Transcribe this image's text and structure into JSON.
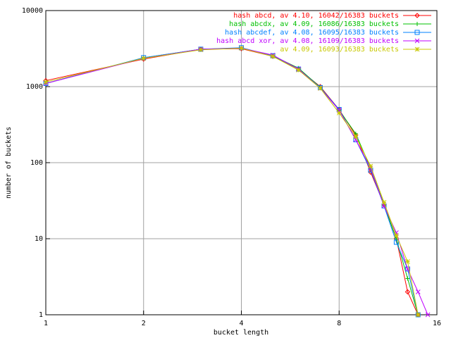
{
  "chart_data": {
    "type": "line",
    "xlabel": "bucket length",
    "ylabel": "number of buckets",
    "x": [
      1,
      2,
      3,
      4,
      5,
      6,
      7,
      8,
      9,
      10,
      11,
      12,
      13,
      14,
      15
    ],
    "xlim": [
      1,
      16
    ],
    "xticks": [
      1,
      2,
      4,
      8,
      16
    ],
    "xlog": true,
    "ylim": [
      1,
      10000
    ],
    "yticks": [
      1,
      10,
      100,
      1000,
      10000
    ],
    "ylog": true,
    "grid": true,
    "legend": "top-right",
    "series": [
      {
        "name": "hash abcd, av 4.10, 16042/16383 buckets",
        "color": "#ff0000",
        "marker": "diamond",
        "values": [
          1200,
          2300,
          3100,
          3150,
          2500,
          1700,
          1000,
          500,
          230,
          75,
          28,
          10,
          2,
          1,
          null
        ]
      },
      {
        "name": "hash abcdx, av 4.09, 16086/16383 buckets",
        "color": "#00c000",
        "marker": "plus",
        "values": [
          1100,
          2400,
          3100,
          3200,
          2550,
          1750,
          980,
          490,
          240,
          85,
          28,
          10,
          3,
          1,
          null
        ]
      },
      {
        "name": "hash abcdef, av 4.08, 16095/16383 buckets",
        "color": "#0080ff",
        "marker": "square",
        "values": [
          1100,
          2400,
          3100,
          3250,
          2550,
          1700,
          970,
          500,
          200,
          80,
          27,
          9,
          4,
          1,
          null
        ]
      },
      {
        "name": "hash abcd xor, av 4.08, 16109/16383 buckets",
        "color": "#c000ff",
        "marker": "cross",
        "values": [
          1100,
          2350,
          3100,
          3200,
          2600,
          1700,
          950,
          490,
          200,
          85,
          27,
          12,
          4,
          2,
          1
        ]
      },
      {
        "name": "av 4.09, 16093/16383 buckets",
        "color": "#c8c800",
        "marker": "star",
        "values": [
          1150,
          2350,
          3050,
          3200,
          2500,
          1650,
          950,
          450,
          220,
          90,
          30,
          11,
          5,
          1,
          null
        ]
      }
    ]
  }
}
